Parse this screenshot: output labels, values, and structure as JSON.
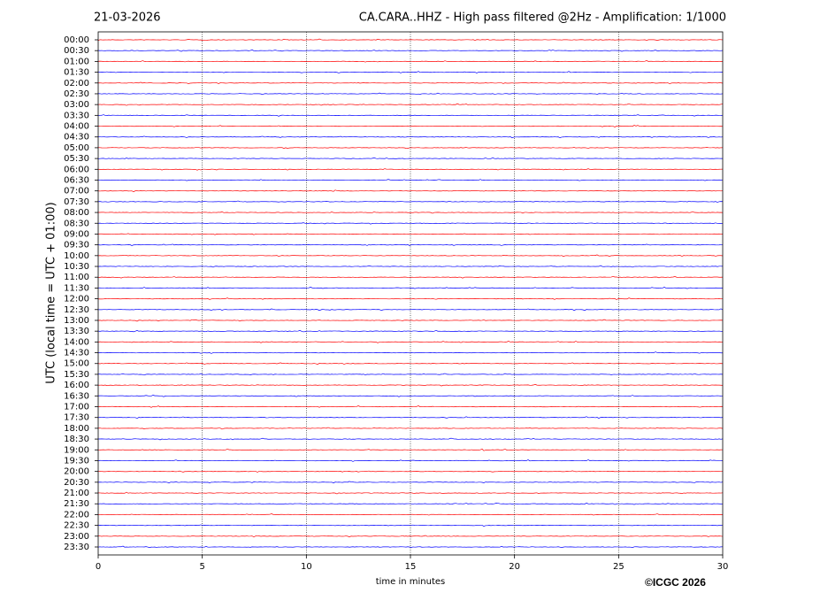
{
  "chart_data": {
    "type": "helicorder",
    "date": "21-03-2026",
    "title": "CA.CARA..HHZ - High pass filtered @2Hz - Amplification: 1/1000",
    "ylabel": "UTC (local time = UTC + 01:00)",
    "xlabel": "time in minutes",
    "copyright": "©ICGC 2026",
    "xlim": [
      0,
      30
    ],
    "xticks": [
      0,
      5,
      10,
      15,
      20,
      25,
      30
    ],
    "grid": true,
    "colors": [
      "red",
      "blue"
    ],
    "rows": [
      "00:00",
      "00:30",
      "01:00",
      "01:30",
      "02:00",
      "02:30",
      "03:00",
      "03:30",
      "04:00",
      "04:30",
      "05:00",
      "05:30",
      "06:00",
      "06:30",
      "07:00",
      "07:30",
      "08:00",
      "08:30",
      "09:00",
      "09:30",
      "10:00",
      "10:30",
      "11:00",
      "11:30",
      "12:00",
      "12:30",
      "13:00",
      "13:30",
      "14:00",
      "14:30",
      "15:00",
      "15:30",
      "16:00",
      "16:30",
      "17:00",
      "17:30",
      "18:00",
      "18:30",
      "19:00",
      "19:30",
      "20:00",
      "20:30",
      "21:00",
      "21:30",
      "22:00",
      "22:30",
      "23:00",
      "23:30"
    ]
  }
}
